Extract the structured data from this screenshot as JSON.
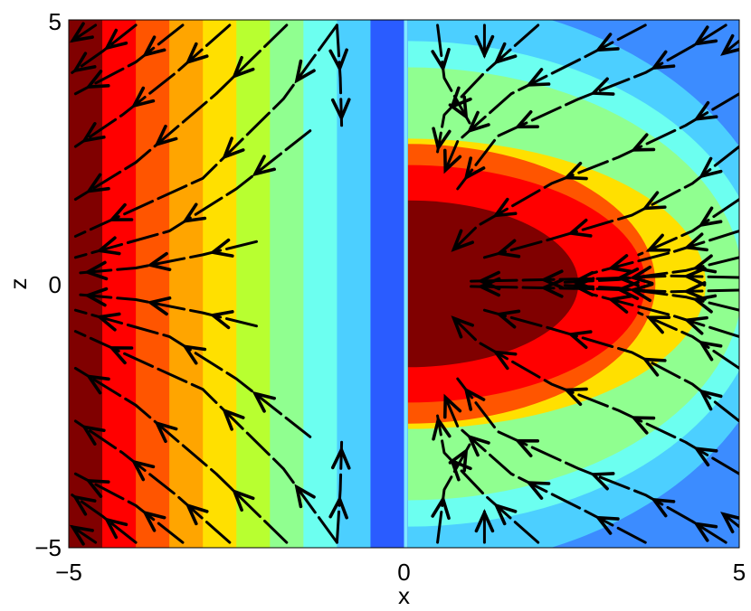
{
  "chart_data": {
    "type": "contour",
    "overlay": "vector-field-streamlines",
    "title": "",
    "xlabel": "x",
    "ylabel": "z",
    "xlim": [
      -5,
      5
    ],
    "ylim": [
      -5,
      5
    ],
    "x_ticks": [
      -5,
      0,
      5
    ],
    "y_ticks": [
      -5,
      0,
      5
    ],
    "x_tick_labels": [
      "−5",
      "0",
      "5"
    ],
    "y_tick_labels": [
      "−5",
      "0",
      "5"
    ],
    "grid": false,
    "legend": "none",
    "colormap": "jet",
    "colormap_colors": [
      "#0000aa",
      "#0000ff",
      "#2a5cff",
      "#3c8cff",
      "#4ccfff",
      "#6cfff0",
      "#90ff90",
      "#b8ff30",
      "#ffe000",
      "#ffa500",
      "#ff5500",
      "#ff0000",
      "#800000"
    ],
    "left_half_bands": {
      "x_edges": [
        -5,
        -4.5,
        -4,
        -3.5,
        -3,
        -2.5,
        -2,
        -1.5,
        -1,
        -0.5,
        0
      ],
      "level_index": [
        12,
        11,
        10,
        9,
        8,
        7,
        6,
        5,
        4,
        2,
        1
      ]
    },
    "right_half_lobe": {
      "levels_outer_to_inner": [
        {
          "level_index": 4,
          "x_reach": 5.7,
          "z_half": 5.4
        },
        {
          "level_index": 5,
          "x_reach": 5.35,
          "z_half": 4.6
        },
        {
          "level_index": 6,
          "x_reach": 5.05,
          "z_half": 4.1
        },
        {
          "level_index": 8,
          "x_reach": 4.5,
          "z_half": 2.75
        },
        {
          "level_index": 10,
          "x_reach": 3.75,
          "z_half": 2.65
        },
        {
          "level_index": 11,
          "x_reach": 3.6,
          "z_half": 2.25
        },
        {
          "level_index": 12,
          "x_reach": 2.6,
          "z_half": 1.58
        }
      ]
    },
    "arrow_color": "#000000",
    "streamlines_left": [
      [
        [
          -2.2,
          0.8
        ],
        [
          -3.0,
          0.55
        ],
        [
          -4.0,
          0.3
        ],
        [
          -4.9,
          0.2
        ]
      ],
      [
        [
          -2.2,
          -0.8
        ],
        [
          -3.0,
          -0.55
        ],
        [
          -4.0,
          -0.3
        ],
        [
          -4.9,
          -0.2
        ]
      ],
      [
        [
          -1.4,
          2.9
        ],
        [
          -2.5,
          1.8
        ],
        [
          -3.5,
          1.0
        ],
        [
          -4.9,
          0.5
        ]
      ],
      [
        [
          -1.4,
          -2.9
        ],
        [
          -2.5,
          -1.8
        ],
        [
          -3.5,
          -1.0
        ],
        [
          -4.9,
          -0.5
        ]
      ],
      [
        [
          -1.0,
          4.9
        ],
        [
          -1.8,
          3.5
        ],
        [
          -3.0,
          2.0
        ],
        [
          -4.9,
          0.9
        ]
      ],
      [
        [
          -1.0,
          -4.9
        ],
        [
          -1.8,
          -3.5
        ],
        [
          -3.0,
          -2.0
        ],
        [
          -4.9,
          -0.9
        ]
      ],
      [
        [
          -1.75,
          4.9
        ],
        [
          -2.8,
          3.6
        ],
        [
          -4.0,
          2.3
        ],
        [
          -4.9,
          1.6
        ]
      ],
      [
        [
          -1.75,
          -4.9
        ],
        [
          -2.8,
          -3.6
        ],
        [
          -4.0,
          -2.3
        ],
        [
          -4.9,
          -1.6
        ]
      ],
      [
        [
          -2.6,
          4.9
        ],
        [
          -3.4,
          4.0
        ],
        [
          -4.2,
          3.2
        ],
        [
          -4.9,
          2.6
        ]
      ],
      [
        [
          -2.6,
          -4.9
        ],
        [
          -3.4,
          -4.0
        ],
        [
          -4.2,
          -3.2
        ],
        [
          -4.9,
          -2.6
        ]
      ],
      [
        [
          -3.3,
          4.9
        ],
        [
          -4.0,
          4.2
        ],
        [
          -4.9,
          3.6
        ]
      ],
      [
        [
          -3.3,
          -4.9
        ],
        [
          -4.0,
          -4.2
        ],
        [
          -4.9,
          -3.6
        ]
      ],
      [
        [
          -4.0,
          4.9
        ],
        [
          -4.5,
          4.4
        ],
        [
          -4.95,
          4.0
        ]
      ],
      [
        [
          -4.0,
          -4.9
        ],
        [
          -4.5,
          -4.4
        ],
        [
          -4.95,
          -4.0
        ]
      ],
      [
        [
          -4.6,
          4.9
        ],
        [
          -4.95,
          4.6
        ]
      ],
      [
        [
          -4.6,
          -4.9
        ],
        [
          -4.95,
          -4.6
        ]
      ],
      [
        [
          -1.0,
          4.9
        ],
        [
          -0.95,
          3.9
        ],
        [
          -0.93,
          3.0
        ]
      ],
      [
        [
          -1.0,
          -4.9
        ],
        [
          -0.95,
          -3.9
        ],
        [
          -0.93,
          -3.0
        ]
      ]
    ],
    "streamlines_right": [
      [
        [
          5.0,
          0.12
        ],
        [
          4.0,
          0.15
        ],
        [
          3.0,
          0.1
        ],
        [
          1.8,
          0.07
        ],
        [
          1.0,
          0.05
        ]
      ],
      [
        [
          5.0,
          -0.12
        ],
        [
          4.0,
          -0.15
        ],
        [
          3.0,
          -0.1
        ],
        [
          1.8,
          -0.07
        ],
        [
          1.0,
          -0.05
        ]
      ],
      [
        [
          5.0,
          0.5
        ],
        [
          4.2,
          0.25
        ],
        [
          3.2,
          0.08
        ],
        [
          2.4,
          0.03
        ]
      ],
      [
        [
          5.0,
          -0.5
        ],
        [
          4.2,
          -0.25
        ],
        [
          3.2,
          -0.08
        ],
        [
          2.4,
          -0.03
        ]
      ],
      [
        [
          5.0,
          1.0
        ],
        [
          4.0,
          0.6
        ],
        [
          2.8,
          0.2
        ]
      ],
      [
        [
          5.0,
          -1.0
        ],
        [
          4.0,
          -0.6
        ],
        [
          2.8,
          -0.2
        ]
      ],
      [
        [
          5.0,
          1.6
        ],
        [
          4.3,
          1.0
        ],
        [
          3.5,
          0.55
        ]
      ],
      [
        [
          5.0,
          -1.6
        ],
        [
          4.3,
          -1.0
        ],
        [
          3.5,
          -0.55
        ]
      ],
      [
        [
          5.0,
          2.6
        ],
        [
          4.3,
          1.9
        ],
        [
          3.4,
          1.3
        ],
        [
          2.2,
          0.85
        ],
        [
          1.2,
          0.5
        ]
      ],
      [
        [
          5.0,
          -2.6
        ],
        [
          4.3,
          -1.9
        ],
        [
          3.4,
          -1.3
        ],
        [
          2.2,
          -0.85
        ],
        [
          1.2,
          -0.5
        ]
      ],
      [
        [
          5.0,
          3.6
        ],
        [
          4.2,
          3.0
        ],
        [
          3.2,
          2.4
        ],
        [
          2.2,
          1.9
        ],
        [
          1.1,
          1.1
        ],
        [
          0.7,
          0.6
        ]
      ],
      [
        [
          5.0,
          -3.6
        ],
        [
          4.2,
          -3.0
        ],
        [
          3.2,
          -2.4
        ],
        [
          2.2,
          -1.9
        ],
        [
          1.1,
          -1.1
        ],
        [
          0.7,
          -0.6
        ]
      ],
      [
        [
          4.8,
          4.9
        ],
        [
          4.3,
          4.5
        ],
        [
          3.6,
          4.0
        ],
        [
          2.6,
          3.5
        ],
        [
          1.4,
          2.8
        ],
        [
          0.8,
          1.8
        ]
      ],
      [
        [
          4.8,
          -4.9
        ],
        [
          4.3,
          -4.5
        ],
        [
          3.6,
          -4.0
        ],
        [
          2.6,
          -3.5
        ],
        [
          1.4,
          -2.8
        ],
        [
          0.8,
          -1.8
        ]
      ],
      [
        [
          3.6,
          4.9
        ],
        [
          2.7,
          4.3
        ],
        [
          1.6,
          3.6
        ],
        [
          0.8,
          2.7
        ],
        [
          0.6,
          2.1
        ]
      ],
      [
        [
          3.6,
          -4.9
        ],
        [
          2.7,
          -4.3
        ],
        [
          1.6,
          -3.6
        ],
        [
          0.8,
          -2.7
        ],
        [
          0.6,
          -2.1
        ]
      ],
      [
        [
          2.0,
          4.9
        ],
        [
          1.2,
          4.0
        ],
        [
          0.6,
          3.2
        ],
        [
          0.5,
          2.5
        ]
      ],
      [
        [
          2.0,
          -4.9
        ],
        [
          1.2,
          -4.0
        ],
        [
          0.6,
          -3.2
        ],
        [
          0.5,
          -2.5
        ]
      ],
      [
        [
          0.5,
          4.9
        ],
        [
          0.6,
          3.9
        ],
        [
          1.0,
          3.0
        ]
      ],
      [
        [
          0.5,
          -4.9
        ],
        [
          0.6,
          -3.9
        ],
        [
          1.0,
          -3.0
        ]
      ],
      [
        [
          1.2,
          4.9
        ],
        [
          1.2,
          4.3
        ]
      ],
      [
        [
          1.2,
          -4.9
        ],
        [
          1.2,
          -4.3
        ]
      ],
      [
        [
          5.0,
          4.6
        ],
        [
          4.8,
          4.4
        ]
      ],
      [
        [
          5.0,
          -4.6
        ],
        [
          4.8,
          -4.4
        ]
      ]
    ]
  }
}
